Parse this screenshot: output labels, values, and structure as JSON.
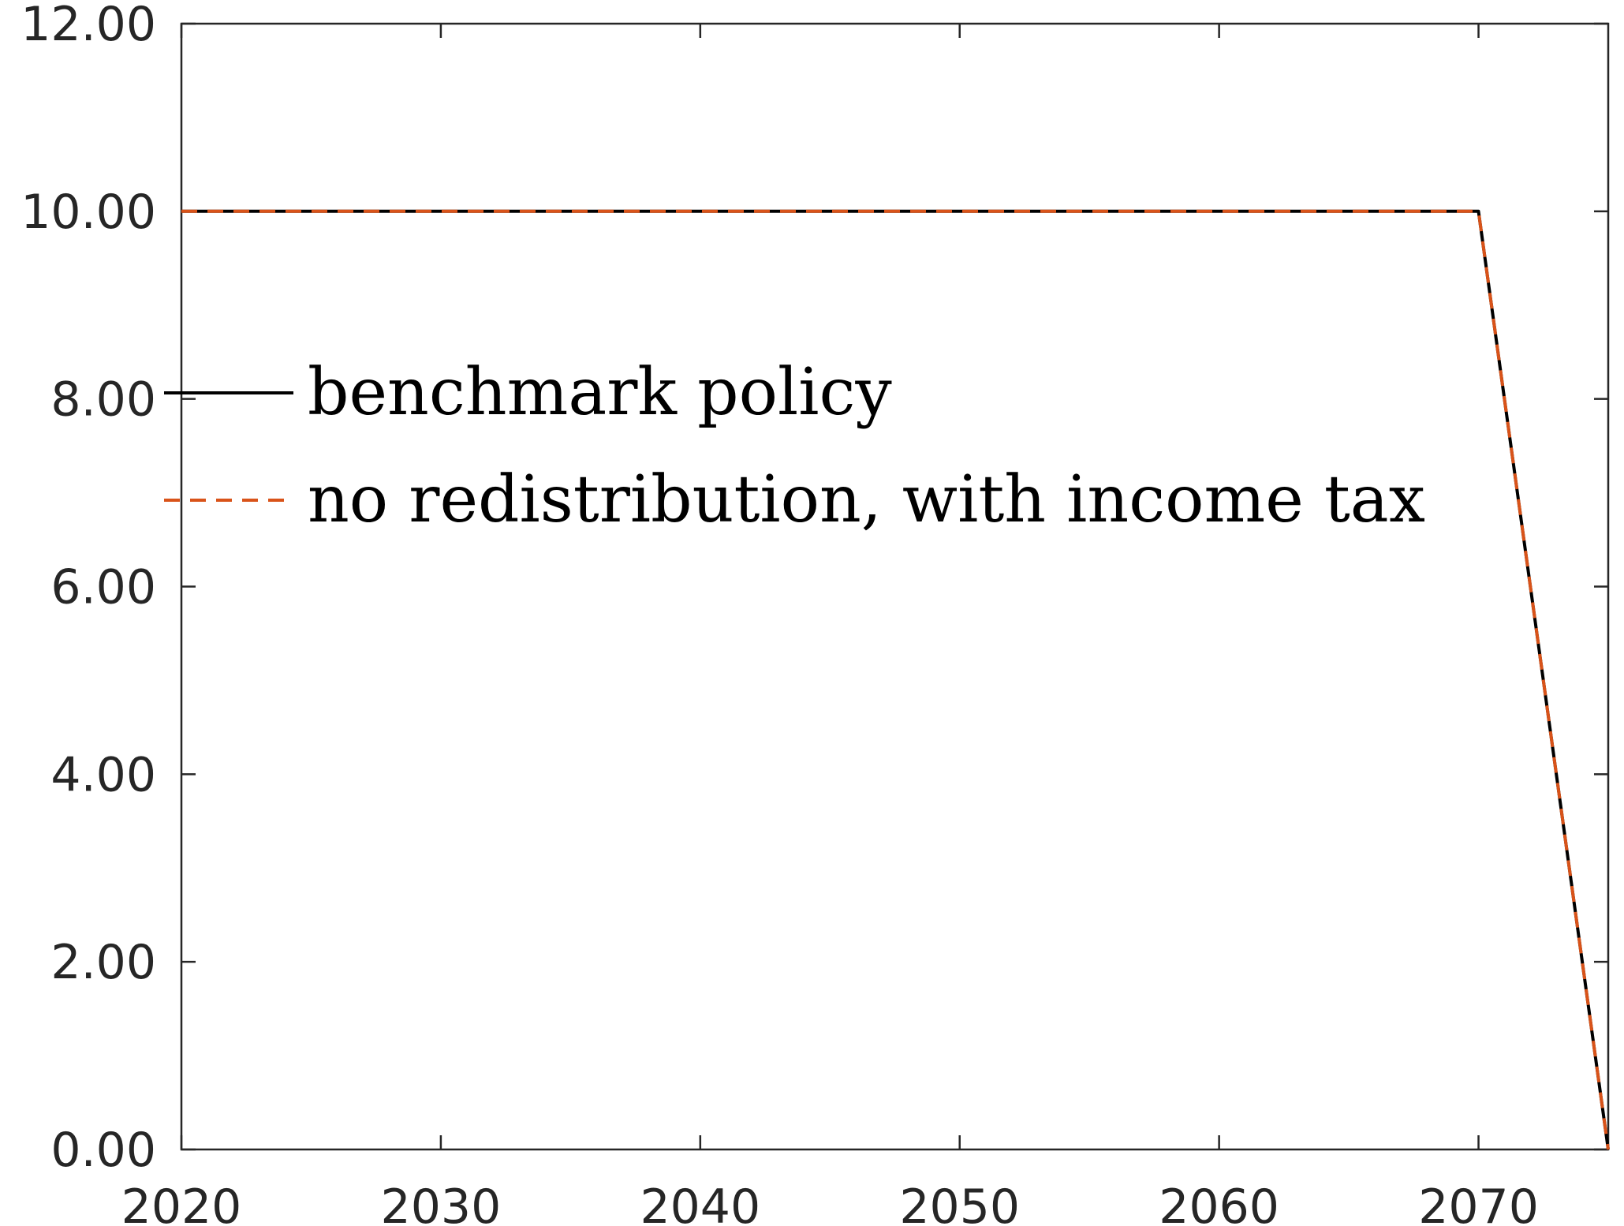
{
  "chart_data": {
    "type": "line",
    "title": "",
    "xlabel": "",
    "ylabel": "",
    "xlim": [
      2020,
      2075
    ],
    "ylim": [
      0,
      12
    ],
    "x_ticks": [
      "2020",
      "2030",
      "2040",
      "2050",
      "2060",
      "2070"
    ],
    "y_ticks": [
      "0.00",
      "2.00",
      "4.00",
      "6.00",
      "8.00",
      "10.00",
      "12.00"
    ],
    "grid": false,
    "legend_position": "left",
    "x": [
      2020,
      2070,
      2075
    ],
    "series": [
      {
        "name": "benchmark policy",
        "color": "#000000",
        "style": "solid",
        "values": [
          10,
          10,
          0
        ]
      },
      {
        "name": "no redistribution, with income tax",
        "color": "#d95319",
        "style": "dashed",
        "values": [
          10,
          10,
          0
        ]
      }
    ]
  }
}
